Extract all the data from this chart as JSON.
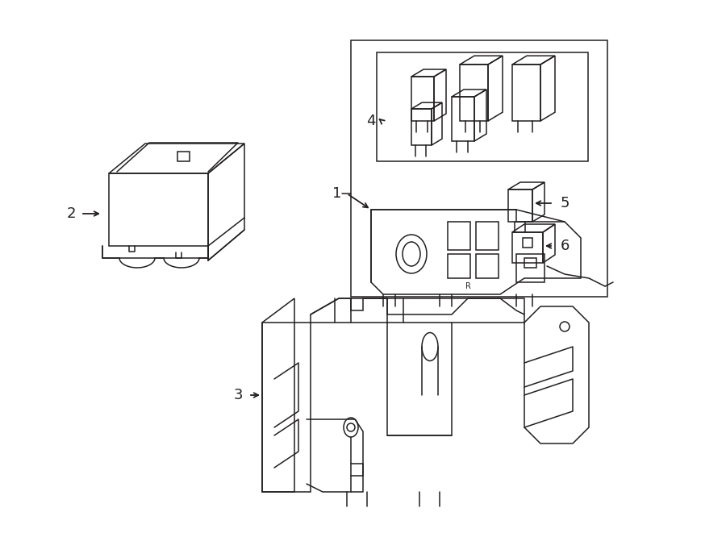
{
  "background_color": "#ffffff",
  "line_color": "#231f20",
  "line_width": 1.1,
  "fig_width": 9.0,
  "fig_height": 6.61,
  "dpi": 100,
  "xlim": [
    0,
    900
  ],
  "ylim": [
    0,
    661
  ]
}
